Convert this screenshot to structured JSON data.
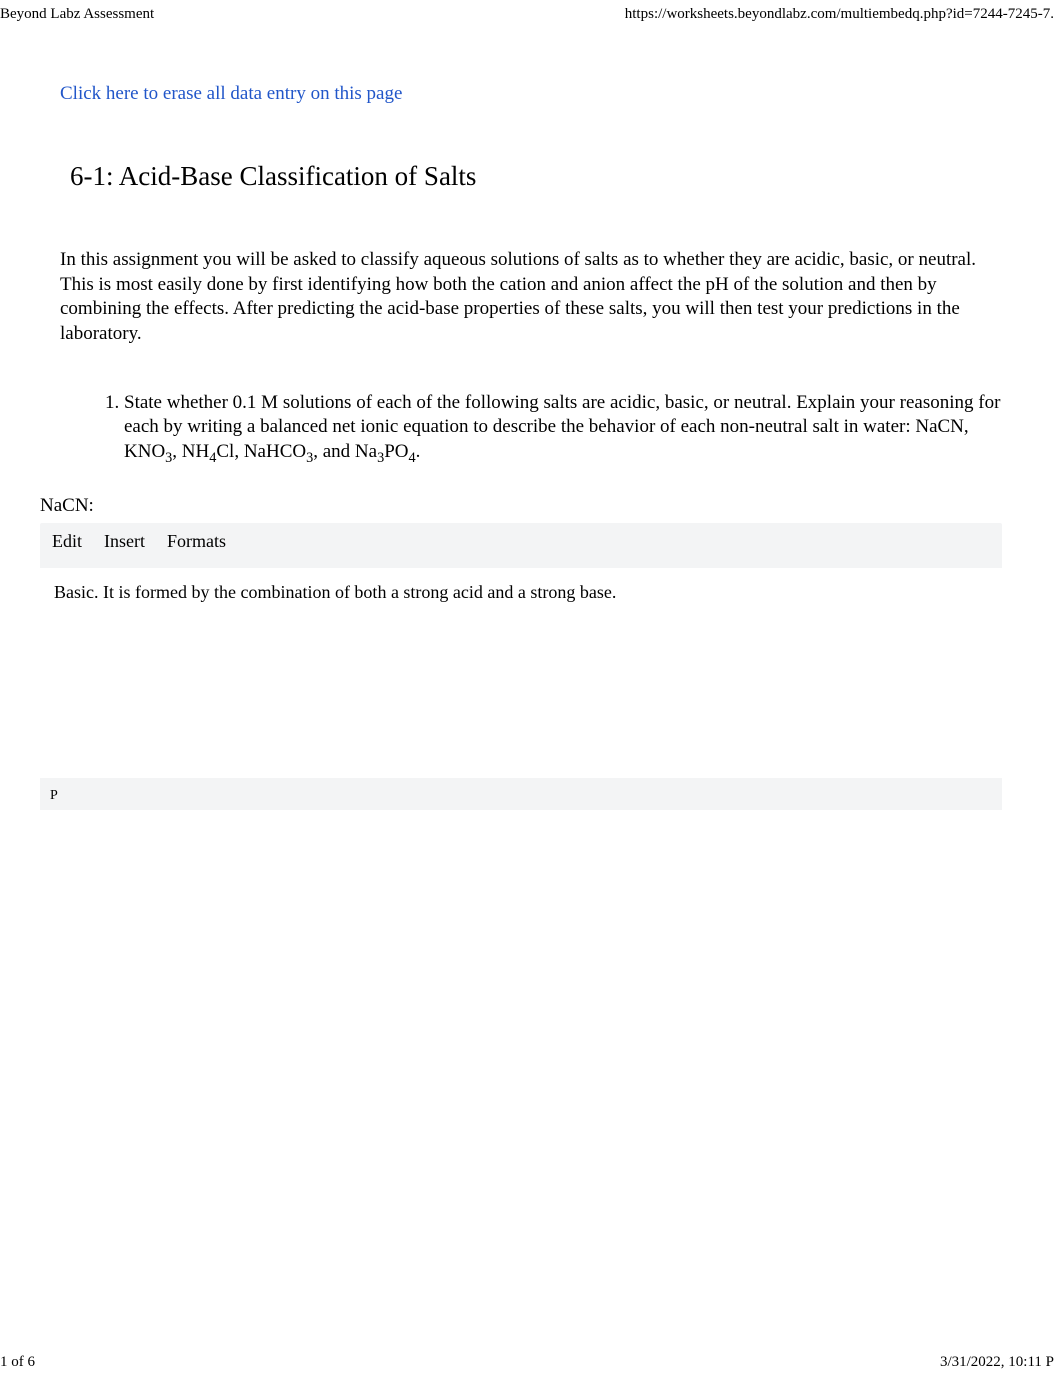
{
  "header": {
    "left": "Beyond Labz Assessment",
    "right": "https://worksheets.beyondlabz.com/multiembedq.php?id=7244-7245-7."
  },
  "erase_link": "Click here to erase all data entry on this page",
  "title": "6-1: Acid-Base Classification of Salts",
  "intro": "In this assignment you will be asked to classify aqueous solutions of salts as to whether they are acidic, basic, or neutral. This is most easily done by first identifying how both the cation and anion affect the pH of the solution and then by combining the effects. After predicting the acid-base properties of these salts, you will then test your predictions in the laboratory.",
  "question": {
    "number": "1.",
    "text_before_salts": "State whether 0.1 M solutions of each of the following salts are acidic, basic, or neutral. Explain your reasoning for each by writing a balanced net ionic equation to describe the behavior of each non-neutral salt in water: NaCN, KNO",
    "sub1": "3",
    "mid1": ", NH",
    "sub2": "4",
    "mid2": "Cl, NaHCO",
    "sub3": "3",
    "mid3": ", and Na",
    "sub4": "3",
    "mid4": "PO",
    "sub5": "4",
    "end": "."
  },
  "salt_label": "NaCN:",
  "editor": {
    "menus": {
      "edit": "Edit",
      "insert": "Insert",
      "formats": "Formats"
    },
    "row1_icons": [
      "",
      "",
      "",
      "",
      "",
      "",
      "",
      ""
    ],
    "row2_icons": [
      "",
      "",
      "",
      "",
      "",
      "",
      "",
      "",
      "",
      "",
      "",
      "",
      "",
      "",
      ""
    ],
    "content": "Basic. It is formed by the combination of both a strong acid and a strong base.",
    "status_path": "P",
    "resize_glyph": ""
  },
  "footer": {
    "left": "1 of 6",
    "right": "3/31/2022, 10:11 P"
  }
}
